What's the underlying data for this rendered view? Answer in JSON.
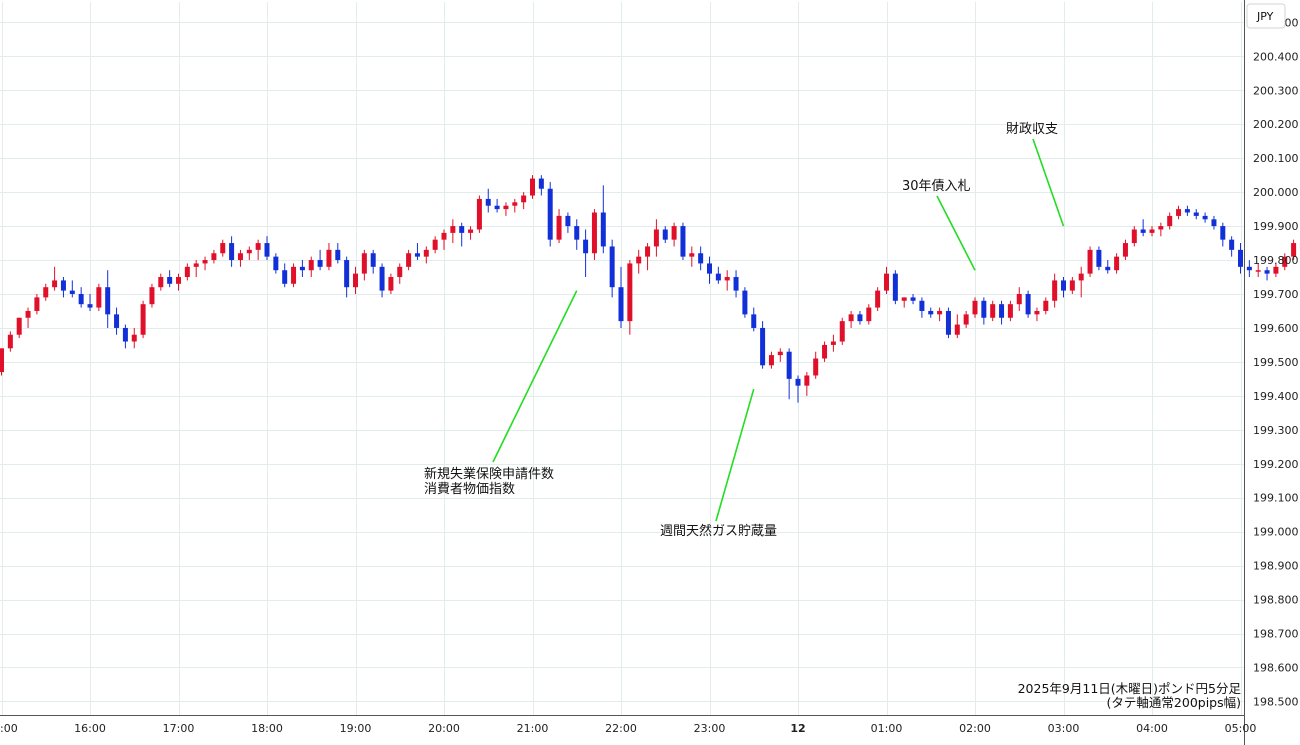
{
  "chart_data": {
    "type": "candlestick",
    "currency": "JPY",
    "caption": [
      "2025年9月11日(木曜日)ポンド円5分足",
      "(タテ軸通常200pips幅)"
    ],
    "ylim": [
      198.46,
      200.56
    ],
    "y_ticks": [
      200.5,
      200.4,
      200.3,
      200.2,
      200.1,
      200.0,
      199.9,
      199.8,
      199.7,
      199.6,
      199.5,
      199.4,
      199.3,
      199.2,
      199.1,
      199.0,
      198.9,
      198.8,
      198.7,
      198.6,
      198.5
    ],
    "y_tick_labels": [
      "200.500",
      "200.400",
      "200.300",
      "200.200",
      "200.100",
      "200.000",
      "199.900",
      "199.800",
      "199.700",
      "199.600",
      "199.500",
      "199.400",
      "199.300",
      "199.200",
      "199.100",
      "199.000",
      "198.900",
      "198.800",
      "198.700",
      "198.600",
      "198.500"
    ],
    "x_ticks": [
      {
        "label": ":00",
        "bar": 0,
        "bold": false
      },
      {
        "label": "16:00",
        "bar": 10,
        "bold": false
      },
      {
        "label": "17:00",
        "bar": 20,
        "bold": false
      },
      {
        "label": "18:00",
        "bar": 30,
        "bold": false
      },
      {
        "label": "19:00",
        "bar": 40,
        "bold": false
      },
      {
        "label": "20:00",
        "bar": 50,
        "bold": false
      },
      {
        "label": "21:00",
        "bar": 60,
        "bold": false
      },
      {
        "label": "22:00",
        "bar": 70,
        "bold": false
      },
      {
        "label": "23:00",
        "bar": 80,
        "bold": false
      },
      {
        "label": "12",
        "bar": 90,
        "bold": true
      },
      {
        "label": "01:00",
        "bar": 100,
        "bold": false
      },
      {
        "label": "02:00",
        "bar": 110,
        "bold": false
      },
      {
        "label": "03:00",
        "bar": 120,
        "bold": false
      },
      {
        "label": "04:00",
        "bar": 130,
        "bold": false
      },
      {
        "label": "05:00",
        "bar": 140,
        "bold": false
      }
    ],
    "candles": [
      [
        199.47,
        199.54,
        199.46,
        199.54
      ],
      [
        199.54,
        199.59,
        199.53,
        199.58
      ],
      [
        199.58,
        199.63,
        199.57,
        199.63
      ],
      [
        199.63,
        199.66,
        199.6,
        199.65
      ],
      [
        199.65,
        199.7,
        199.64,
        199.69
      ],
      [
        199.69,
        199.73,
        199.68,
        199.72
      ],
      [
        199.72,
        199.78,
        199.71,
        199.74
      ],
      [
        199.74,
        199.75,
        199.69,
        199.71
      ],
      [
        199.71,
        199.74,
        199.69,
        199.7
      ],
      [
        199.7,
        199.72,
        199.66,
        199.67
      ],
      [
        199.67,
        199.7,
        199.65,
        199.66
      ],
      [
        199.66,
        199.73,
        199.65,
        199.72
      ],
      [
        199.72,
        199.77,
        199.6,
        199.64
      ],
      [
        199.64,
        199.66,
        199.58,
        199.6
      ],
      [
        199.6,
        199.61,
        199.54,
        199.56
      ],
      [
        199.56,
        199.6,
        199.54,
        199.58
      ],
      [
        199.58,
        199.68,
        199.57,
        199.67
      ],
      [
        199.67,
        199.73,
        199.66,
        199.72
      ],
      [
        199.72,
        199.76,
        199.71,
        199.75
      ],
      [
        199.75,
        199.77,
        199.72,
        199.73
      ],
      [
        199.73,
        199.76,
        199.71,
        199.75
      ],
      [
        199.75,
        199.79,
        199.74,
        199.78
      ],
      [
        199.78,
        199.8,
        199.75,
        199.79
      ],
      [
        199.79,
        199.81,
        199.77,
        199.8
      ],
      [
        199.8,
        199.83,
        199.79,
        199.82
      ],
      [
        199.82,
        199.86,
        199.81,
        199.85
      ],
      [
        199.85,
        199.87,
        199.78,
        199.8
      ],
      [
        199.8,
        199.83,
        199.78,
        199.82
      ],
      [
        199.82,
        199.84,
        199.8,
        199.83
      ],
      [
        199.83,
        199.86,
        199.8,
        199.85
      ],
      [
        199.85,
        199.87,
        199.8,
        199.81
      ],
      [
        199.81,
        199.82,
        199.76,
        199.77
      ],
      [
        199.77,
        199.79,
        199.72,
        199.73
      ],
      [
        199.73,
        199.79,
        199.72,
        199.78
      ],
      [
        199.78,
        199.8,
        199.75,
        199.77
      ],
      [
        199.77,
        199.81,
        199.75,
        199.8
      ],
      [
        199.8,
        199.83,
        199.77,
        199.78
      ],
      [
        199.78,
        199.85,
        199.77,
        199.83
      ],
      [
        199.83,
        199.85,
        199.79,
        199.8
      ],
      [
        199.8,
        199.81,
        199.69,
        199.72
      ],
      [
        199.72,
        199.78,
        199.7,
        199.76
      ],
      [
        199.76,
        199.83,
        199.74,
        199.82
      ],
      [
        199.82,
        199.83,
        199.76,
        199.78
      ],
      [
        199.78,
        199.79,
        199.69,
        199.71
      ],
      [
        199.71,
        199.76,
        199.7,
        199.75
      ],
      [
        199.75,
        199.79,
        199.73,
        199.78
      ],
      [
        199.78,
        199.83,
        199.77,
        199.82
      ],
      [
        199.82,
        199.85,
        199.8,
        199.81
      ],
      [
        199.81,
        199.84,
        199.79,
        199.83
      ],
      [
        199.83,
        199.87,
        199.82,
        199.86
      ],
      [
        199.86,
        199.89,
        199.83,
        199.88
      ],
      [
        199.88,
        199.92,
        199.85,
        199.9
      ],
      [
        199.9,
        199.91,
        199.84,
        199.88
      ],
      [
        199.88,
        199.9,
        199.86,
        199.89
      ],
      [
        199.89,
        199.99,
        199.88,
        199.98
      ],
      [
        199.98,
        200.01,
        199.94,
        199.96
      ],
      [
        199.96,
        199.98,
        199.94,
        199.95
      ],
      [
        199.95,
        199.97,
        199.93,
        199.96
      ],
      [
        199.96,
        199.98,
        199.94,
        199.97
      ],
      [
        199.97,
        200.0,
        199.95,
        199.99
      ],
      [
        199.99,
        200.05,
        199.98,
        200.04
      ],
      [
        200.04,
        200.05,
        199.99,
        200.01
      ],
      [
        200.01,
        200.03,
        199.84,
        199.86
      ],
      [
        199.86,
        199.95,
        199.85,
        199.93
      ],
      [
        199.93,
        199.94,
        199.88,
        199.9
      ],
      [
        199.9,
        199.92,
        199.83,
        199.86
      ],
      [
        199.86,
        199.89,
        199.75,
        199.82
      ],
      [
        199.82,
        199.95,
        199.8,
        199.94
      ],
      [
        199.94,
        200.02,
        199.82,
        199.84
      ],
      [
        199.84,
        199.86,
        199.69,
        199.72
      ],
      [
        199.72,
        199.78,
        199.6,
        199.62
      ],
      [
        199.62,
        199.8,
        199.58,
        199.79
      ],
      [
        199.79,
        199.83,
        199.76,
        199.81
      ],
      [
        199.81,
        199.85,
        199.77,
        199.84
      ],
      [
        199.84,
        199.92,
        199.81,
        199.89
      ],
      [
        199.89,
        199.9,
        199.85,
        199.86
      ],
      [
        199.86,
        199.91,
        199.84,
        199.9
      ],
      [
        199.9,
        199.91,
        199.8,
        199.81
      ],
      [
        199.81,
        199.84,
        199.78,
        199.82
      ],
      [
        199.82,
        199.84,
        199.77,
        199.79
      ],
      [
        199.79,
        199.81,
        199.73,
        199.76
      ],
      [
        199.76,
        199.78,
        199.73,
        199.74
      ],
      [
        199.74,
        199.77,
        199.71,
        199.75
      ],
      [
        199.75,
        199.77,
        199.69,
        199.71
      ],
      [
        199.71,
        199.72,
        199.63,
        199.64
      ],
      [
        199.64,
        199.66,
        199.59,
        199.6
      ],
      [
        199.6,
        199.62,
        199.48,
        199.49
      ],
      [
        199.49,
        199.53,
        199.48,
        199.52
      ],
      [
        199.52,
        199.54,
        199.5,
        199.53
      ],
      [
        199.53,
        199.54,
        199.39,
        199.45
      ],
      [
        199.45,
        199.46,
        199.38,
        199.43
      ],
      [
        199.43,
        199.47,
        199.4,
        199.46
      ],
      [
        199.46,
        199.53,
        199.45,
        199.51
      ],
      [
        199.51,
        199.56,
        199.5,
        199.55
      ],
      [
        199.55,
        199.58,
        199.53,
        199.56
      ],
      [
        199.56,
        199.63,
        199.55,
        199.62
      ],
      [
        199.62,
        199.65,
        199.6,
        199.64
      ],
      [
        199.64,
        199.65,
        199.61,
        199.62
      ],
      [
        199.62,
        199.67,
        199.61,
        199.66
      ],
      [
        199.66,
        199.72,
        199.65,
        199.71
      ],
      [
        199.71,
        199.78,
        199.7,
        199.76
      ],
      [
        199.76,
        199.77,
        199.67,
        199.68
      ],
      [
        199.68,
        199.69,
        199.66,
        199.69
      ],
      [
        199.69,
        199.7,
        199.67,
        199.68
      ],
      [
        199.68,
        199.69,
        199.63,
        199.65
      ],
      [
        199.65,
        199.66,
        199.63,
        199.64
      ],
      [
        199.64,
        199.66,
        199.62,
        199.65
      ],
      [
        199.65,
        199.66,
        199.57,
        199.58
      ],
      [
        199.58,
        199.64,
        199.57,
        199.61
      ],
      [
        199.61,
        199.65,
        199.6,
        199.64
      ],
      [
        199.64,
        199.69,
        199.63,
        199.68
      ],
      [
        199.68,
        199.69,
        199.61,
        199.63
      ],
      [
        199.63,
        199.68,
        199.62,
        199.67
      ],
      [
        199.67,
        199.68,
        199.61,
        199.63
      ],
      [
        199.63,
        199.68,
        199.62,
        199.67
      ],
      [
        199.67,
        199.72,
        199.65,
        199.7
      ],
      [
        199.7,
        199.71,
        199.63,
        199.64
      ],
      [
        199.64,
        199.66,
        199.62,
        199.65
      ],
      [
        199.65,
        199.69,
        199.64,
        199.68
      ],
      [
        199.68,
        199.76,
        199.66,
        199.74
      ],
      [
        199.74,
        199.75,
        199.69,
        199.71
      ],
      [
        199.71,
        199.75,
        199.7,
        199.74
      ],
      [
        199.74,
        199.78,
        199.69,
        199.76
      ],
      [
        199.76,
        199.84,
        199.75,
        199.83
      ],
      [
        199.83,
        199.84,
        199.77,
        199.78
      ],
      [
        199.78,
        199.8,
        199.76,
        199.77
      ],
      [
        199.77,
        199.82,
        199.76,
        199.81
      ],
      [
        199.81,
        199.86,
        199.8,
        199.85
      ],
      [
        199.85,
        199.9,
        199.84,
        199.89
      ],
      [
        199.89,
        199.92,
        199.87,
        199.88
      ],
      [
        199.88,
        199.9,
        199.87,
        199.89
      ],
      [
        199.89,
        199.91,
        199.87,
        199.9
      ],
      [
        199.9,
        199.94,
        199.89,
        199.93
      ],
      [
        199.93,
        199.96,
        199.92,
        199.95
      ],
      [
        199.95,
        199.96,
        199.93,
        199.94
      ],
      [
        199.94,
        199.95,
        199.92,
        199.93
      ],
      [
        199.93,
        199.94,
        199.91,
        199.92
      ],
      [
        199.92,
        199.93,
        199.89,
        199.9
      ],
      [
        199.9,
        199.91,
        199.84,
        199.86
      ],
      [
        199.86,
        199.87,
        199.81,
        199.83
      ],
      [
        199.83,
        199.85,
        199.76,
        199.78
      ],
      [
        199.78,
        199.8,
        199.75,
        199.77
      ],
      [
        199.77,
        199.79,
        199.75,
        199.77
      ],
      [
        199.77,
        199.78,
        199.74,
        199.76
      ],
      [
        199.76,
        199.79,
        199.75,
        199.78
      ],
      [
        199.78,
        199.82,
        199.77,
        199.81
      ],
      [
        199.81,
        199.86,
        199.8,
        199.85
      ],
      [
        199.85,
        199.86,
        199.82,
        199.83
      ],
      [
        199.83,
        199.84,
        199.79,
        199.82
      ],
      [
        199.82,
        199.85,
        199.81,
        199.84
      ],
      [
        199.84,
        199.87,
        199.79,
        199.81
      ],
      [
        199.81,
        199.86,
        199.8,
        199.85
      ]
    ],
    "annotations": [
      {
        "lines": [
          "新規失業保険申請件数",
          "消費者物価指数"
        ],
        "bar": 65,
        "price": 199.71
      },
      {
        "lines": [
          "週間天然ガス貯蔵量"
        ],
        "bar": 85,
        "price": 199.42
      },
      {
        "lines": [
          "30年債入札"
        ],
        "bar": 110,
        "price": 199.77
      },
      {
        "lines": [
          "財政収支"
        ],
        "bar": 120,
        "price": 199.9
      }
    ],
    "colors": {
      "up": "#e0102a",
      "down": "#1230d8",
      "grid": "#e2ecec",
      "annotation_line": "#22dd22",
      "axis": "#555555",
      "text": "#111111"
    }
  }
}
